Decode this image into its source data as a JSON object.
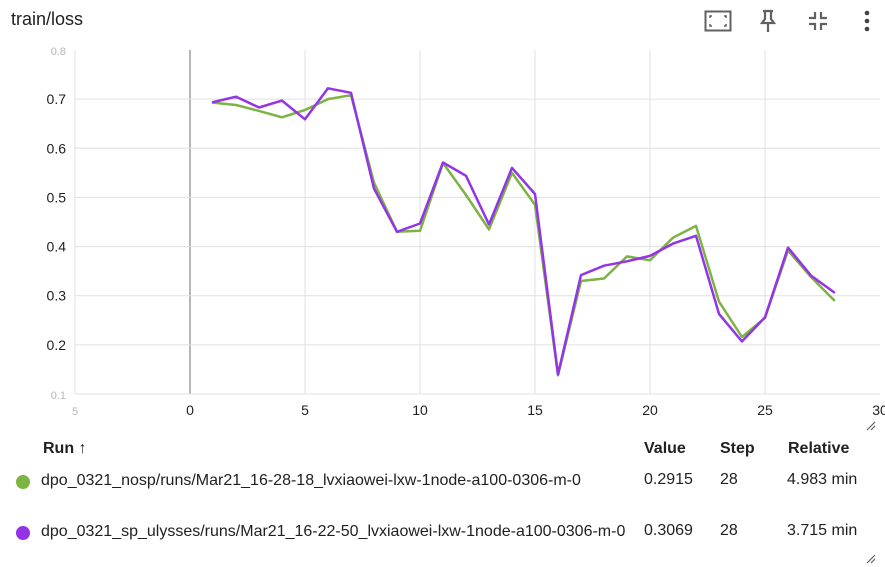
{
  "card": {
    "title": "train/loss",
    "icons": {
      "fit": "fit-domain-icon",
      "pin": "pin-icon",
      "collapse": "collapse-icon",
      "menu": "more-vert-icon"
    }
  },
  "chart_data": {
    "type": "line",
    "title": "",
    "xlabel": "",
    "ylabel": "",
    "xlim": [
      -5,
      30
    ],
    "ylim": [
      0.1,
      0.8
    ],
    "xticks": [
      "5",
      "0",
      "5",
      "10",
      "15",
      "20",
      "25",
      "30"
    ],
    "xtick_values": [
      -5,
      0,
      5,
      10,
      15,
      20,
      25,
      30
    ],
    "yticks": [
      "0.1",
      "0.2",
      "0.3",
      "0.4",
      "0.5",
      "0.6",
      "0.7",
      "0.8"
    ],
    "ytick_values": [
      0.1,
      0.2,
      0.3,
      0.4,
      0.5,
      0.6,
      0.7,
      0.8
    ],
    "grid": true,
    "x": [
      1,
      2,
      3,
      4,
      5,
      6,
      7,
      8,
      9,
      10,
      11,
      12,
      13,
      14,
      15,
      16,
      17,
      18,
      19,
      20,
      21,
      22,
      23,
      24,
      25,
      26,
      27,
      28
    ],
    "series": [
      {
        "color": "#7cb342",
        "values": [
          0.693,
          0.688,
          0.676,
          0.663,
          0.678,
          0.7,
          0.708,
          0.53,
          0.43,
          0.432,
          0.57,
          0.505,
          0.435,
          0.55,
          0.485,
          0.138,
          0.33,
          0.335,
          0.38,
          0.372,
          0.418,
          0.442,
          0.288,
          0.216,
          0.255,
          0.392,
          0.338,
          0.291
        ]
      },
      {
        "color": "#9334e6",
        "values": [
          0.694,
          0.705,
          0.683,
          0.697,
          0.659,
          0.722,
          0.713,
          0.518,
          0.43,
          0.447,
          0.571,
          0.544,
          0.445,
          0.56,
          0.507,
          0.14,
          0.342,
          0.361,
          0.37,
          0.381,
          0.406,
          0.422,
          0.263,
          0.207,
          0.256,
          0.398,
          0.341,
          0.307
        ]
      }
    ]
  },
  "table": {
    "headers": {
      "run": "Run ↑",
      "value": "Value",
      "step": "Step",
      "relative": "Relative"
    },
    "rows": [
      {
        "color": "#7cb342",
        "run": "dpo_0321_nosp/runs/Mar21_16-28-18_lvxiaowei-lxw-1node-a100-0306-m-0",
        "value": "0.2915",
        "step": "28",
        "relative": "4.983 min"
      },
      {
        "color": "#9334e6",
        "run": "dpo_0321_sp_ulysses/runs/Mar21_16-22-50_lvxiaowei-lxw-1node-a100-0306-m-0",
        "value": "0.3069",
        "step": "28",
        "relative": "3.715 min"
      }
    ]
  }
}
